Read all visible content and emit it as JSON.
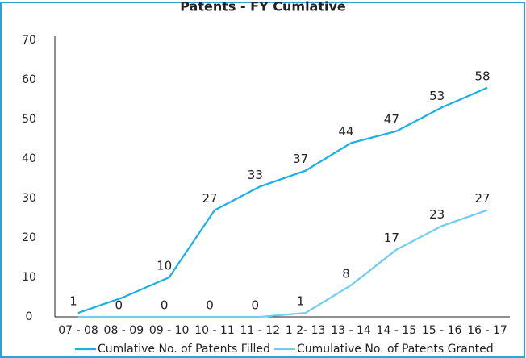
{
  "chart_data": {
    "type": "line",
    "title": "Patents - FY Cumlative",
    "categories": [
      "07 - 08",
      "08 - 09",
      "09 - 10",
      "10 - 11",
      "11 - 12",
      "1 2- 13",
      "13 - 14",
      "14 - 15",
      "15 - 16",
      "16 - 17"
    ],
    "series": [
      {
        "name": "Cumlative No. of Patents Filled",
        "color": "#1aafe6",
        "values": [
          1,
          5,
          10,
          27,
          33,
          37,
          44,
          47,
          53,
          58
        ],
        "value_labels": [
          1,
          null,
          10,
          27,
          33,
          37,
          44,
          47,
          53,
          58
        ]
      },
      {
        "name": "Cumulative No. of Patents Granted",
        "color": "#72cdf0",
        "values": [
          0,
          0,
          0,
          0,
          0,
          1,
          8,
          17,
          23,
          27
        ],
        "value_labels": [
          null,
          0,
          0,
          0,
          0,
          1,
          8,
          17,
          23,
          27
        ]
      }
    ],
    "ylim": [
      0,
      70
    ],
    "yticks": [
      0,
      10,
      20,
      30,
      40,
      50,
      60,
      70
    ],
    "grid": false,
    "legend": "bottom"
  }
}
